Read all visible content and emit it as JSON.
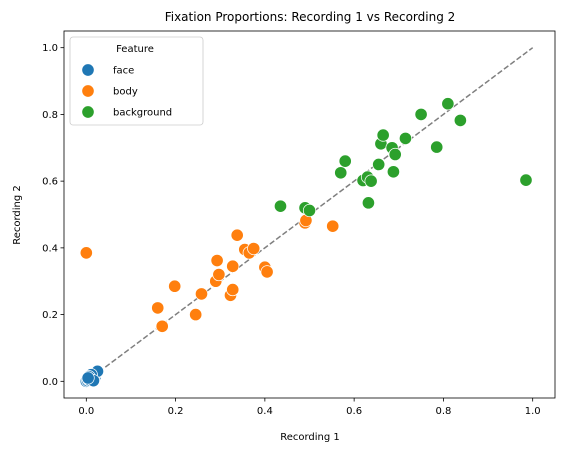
{
  "chart_data": {
    "type": "scatter",
    "title": "Fixation Proportions: Recording 1 vs Recording 2",
    "xlabel": "Recording 1",
    "ylabel": "Recording 2",
    "xlim": [
      -0.05,
      1.05
    ],
    "ylim": [
      -0.05,
      1.05
    ],
    "xticks": [
      "0.0",
      "0.2",
      "0.4",
      "0.6",
      "0.8",
      "1.0"
    ],
    "yticks": [
      "0.0",
      "0.2",
      "0.4",
      "0.6",
      "0.8",
      "1.0"
    ],
    "grid": false,
    "legend": {
      "title": "Feature",
      "placement": "top-left"
    },
    "reference_line": {
      "style": "dashed",
      "color": "#7f7f7f",
      "from": [
        0,
        0
      ],
      "to": [
        1,
        1
      ]
    },
    "series": [
      {
        "name": "face",
        "color": "#1f77b4",
        "points": [
          [
            0.0,
            0.0
          ],
          [
            0.003,
            0.002
          ],
          [
            0.005,
            0.006
          ],
          [
            0.008,
            0.004
          ],
          [
            0.01,
            0.012
          ],
          [
            0.012,
            0.008
          ],
          [
            0.015,
            0.018
          ],
          [
            0.018,
            0.01
          ],
          [
            0.02,
            0.015
          ],
          [
            0.022,
            0.025
          ],
          [
            0.025,
            0.03
          ],
          [
            0.011,
            0.02
          ],
          [
            0.006,
            0.014
          ],
          [
            0.016,
            0.002
          ],
          [
            0.004,
            0.01
          ]
        ]
      },
      {
        "name": "body",
        "color": "#ff7f0e",
        "points": [
          [
            0.0,
            0.385
          ],
          [
            0.16,
            0.22
          ],
          [
            0.17,
            0.165
          ],
          [
            0.198,
            0.285
          ],
          [
            0.245,
            0.2
          ],
          [
            0.258,
            0.262
          ],
          [
            0.29,
            0.3
          ],
          [
            0.293,
            0.362
          ],
          [
            0.297,
            0.32
          ],
          [
            0.323,
            0.258
          ],
          [
            0.328,
            0.345
          ],
          [
            0.328,
            0.275
          ],
          [
            0.338,
            0.438
          ],
          [
            0.355,
            0.395
          ],
          [
            0.365,
            0.385
          ],
          [
            0.375,
            0.398
          ],
          [
            0.4,
            0.342
          ],
          [
            0.405,
            0.328
          ],
          [
            0.49,
            0.475
          ],
          [
            0.492,
            0.482
          ],
          [
            0.552,
            0.465
          ]
        ]
      },
      {
        "name": "background",
        "color": "#2ca02c",
        "points": [
          [
            0.435,
            0.525
          ],
          [
            0.49,
            0.52
          ],
          [
            0.5,
            0.512
          ],
          [
            0.57,
            0.625
          ],
          [
            0.58,
            0.66
          ],
          [
            0.62,
            0.602
          ],
          [
            0.63,
            0.612
          ],
          [
            0.632,
            0.535
          ],
          [
            0.638,
            0.6
          ],
          [
            0.655,
            0.65
          ],
          [
            0.66,
            0.712
          ],
          [
            0.665,
            0.738
          ],
          [
            0.685,
            0.7
          ],
          [
            0.688,
            0.628
          ],
          [
            0.692,
            0.68
          ],
          [
            0.715,
            0.728
          ],
          [
            0.75,
            0.8
          ],
          [
            0.785,
            0.702
          ],
          [
            0.81,
            0.832
          ],
          [
            0.838,
            0.782
          ],
          [
            0.985,
            0.603
          ]
        ]
      }
    ]
  }
}
